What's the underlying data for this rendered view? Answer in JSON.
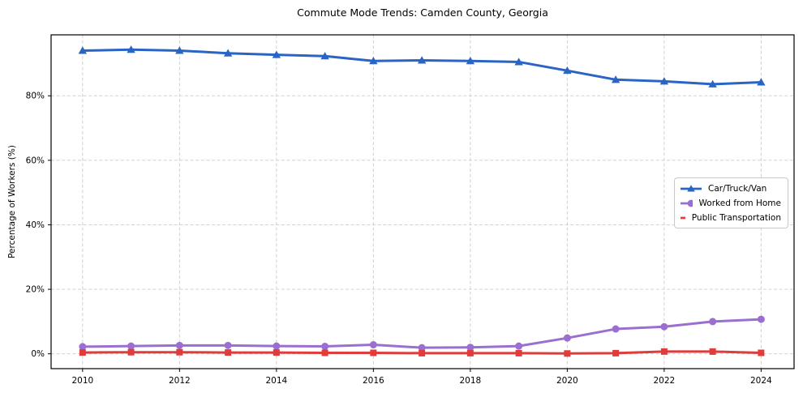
{
  "figure": {
    "title": "Commute Mode Trends: Camden County, Georgia",
    "background_color": "#ffffff",
    "text_color": "#000000",
    "grid_color": "#cccccc",
    "spine_color": "#000000"
  },
  "chart_data": {
    "type": "line",
    "title": "Commute Mode Trends: Camden County, Georgia",
    "xlabel": "",
    "ylabel": "Percentage of Workers (%)",
    "x": [
      2010,
      2011,
      2012,
      2013,
      2014,
      2015,
      2016,
      2017,
      2018,
      2019,
      2020,
      2021,
      2022,
      2023,
      2024
    ],
    "series": [
      {
        "name": "Car/Truck/Van",
        "color": "#2a64c5",
        "marker": "triangle",
        "values": [
          94.0,
          94.3,
          94.0,
          93.2,
          92.7,
          92.3,
          90.8,
          91.0,
          90.8,
          90.5,
          87.8,
          85.0,
          84.5,
          83.6,
          84.2
        ]
      },
      {
        "name": "Worked from Home",
        "color": "#9a6fd0",
        "marker": "circle",
        "values": [
          2.2,
          2.4,
          2.6,
          2.6,
          2.4,
          2.3,
          2.8,
          1.9,
          2.0,
          2.4,
          4.9,
          7.7,
          8.4,
          10.0,
          10.7
        ]
      },
      {
        "name": "Public Transportation",
        "color": "#e03c3c",
        "marker": "square",
        "values": [
          0.4,
          0.5,
          0.5,
          0.4,
          0.4,
          0.3,
          0.3,
          0.2,
          0.2,
          0.2,
          0.1,
          0.2,
          0.7,
          0.7,
          0.3
        ]
      }
    ],
    "xticks": [
      2010,
      2012,
      2014,
      2016,
      2018,
      2020,
      2022,
      2024
    ],
    "xtick_labels": [
      "2010",
      "2012",
      "2014",
      "2016",
      "2018",
      "2020",
      "2022",
      "2024"
    ],
    "yticks": [
      0,
      20,
      40,
      60,
      80
    ],
    "ytick_labels": [
      "0%",
      "20%",
      "40%",
      "60%",
      "80%"
    ],
    "xlim": [
      2009.35,
      2024.68
    ],
    "ylim": [
      -4.6,
      98.9
    ],
    "grid": true,
    "grid_style": "dashed",
    "legend_position": "center-right"
  }
}
